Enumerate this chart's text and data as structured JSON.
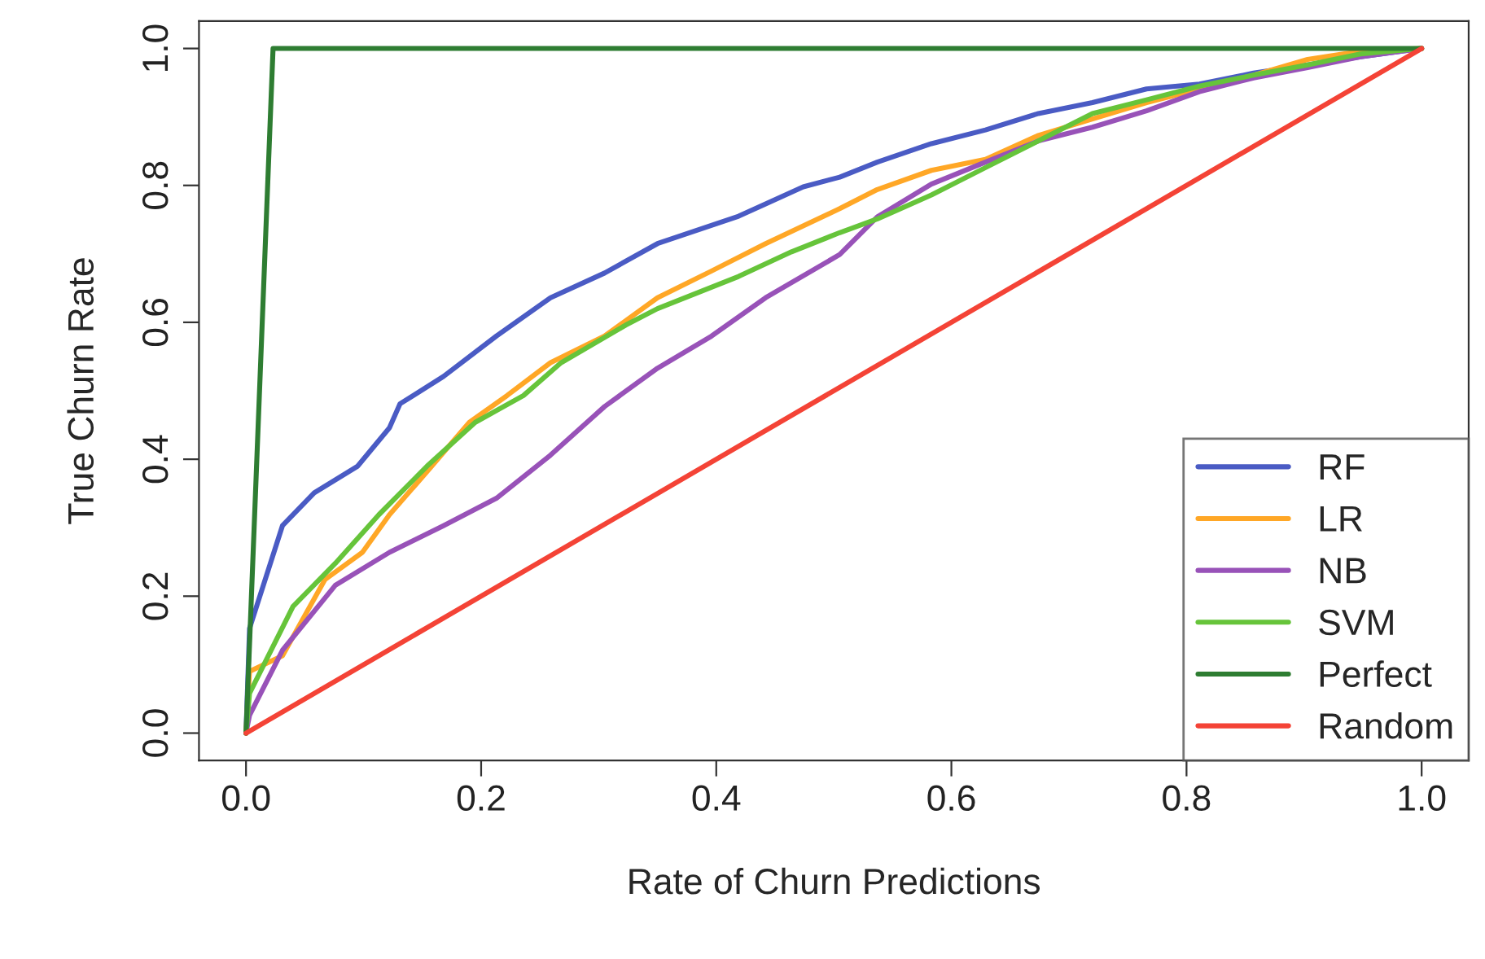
{
  "chart_data": {
    "type": "line",
    "xlabel": "Rate of Churn Predictions",
    "ylabel": "True Churn Rate",
    "xlim": [
      -0.04,
      1.04
    ],
    "ylim": [
      -0.04,
      1.04
    ],
    "xticks": [
      {
        "value": 0,
        "label": "0.0"
      },
      0.2,
      0.4,
      0.6,
      0.8,
      {
        "value": 1,
        "label": "1.0"
      }
    ],
    "yticks": [
      {
        "value": 0,
        "label": "0.0"
      },
      0.2,
      0.4,
      0.6,
      0.8,
      {
        "value": 1,
        "label": "1.0"
      }
    ],
    "grid": false,
    "legend": "bottom right",
    "marker": "none",
    "line_style": "solid",
    "series": [
      {
        "name": "RF",
        "color": "#4a5bc4",
        "x": [
          0,
          0.003,
          0.031,
          0.058,
          0.095,
          0.122,
          0.131,
          0.168,
          0.213,
          0.259,
          0.305,
          0.35,
          0.419,
          0.474,
          0.505,
          0.537,
          0.583,
          0.629,
          0.674,
          0.72,
          0.766,
          0.811,
          0.857,
          0.903,
          0.948,
          1
        ],
        "values": [
          0,
          0.153,
          0.303,
          0.351,
          0.39,
          0.446,
          0.481,
          0.521,
          0.58,
          0.636,
          0.672,
          0.715,
          0.755,
          0.798,
          0.812,
          0.834,
          0.861,
          0.881,
          0.905,
          0.921,
          0.941,
          0.948,
          0.964,
          0.976,
          0.988,
          1
        ]
      },
      {
        "name": "LR",
        "color": "#ffa726",
        "x": [
          0,
          0.003,
          0.031,
          0.067,
          0.099,
          0.122,
          0.154,
          0.19,
          0.222,
          0.259,
          0.305,
          0.35,
          0.396,
          0.442,
          0.505,
          0.537,
          0.583,
          0.629,
          0.674,
          0.72,
          0.766,
          0.811,
          0.857,
          0.903,
          0.948,
          1
        ],
        "values": [
          0,
          0.09,
          0.113,
          0.224,
          0.264,
          0.319,
          0.382,
          0.454,
          0.493,
          0.541,
          0.58,
          0.636,
          0.675,
          0.715,
          0.766,
          0.794,
          0.822,
          0.838,
          0.873,
          0.897,
          0.921,
          0.941,
          0.961,
          0.984,
          0.996,
          1
        ]
      },
      {
        "name": "NB",
        "color": "#9852b8",
        "x": [
          0,
          0.003,
          0.031,
          0.076,
          0.122,
          0.168,
          0.213,
          0.259,
          0.305,
          0.35,
          0.396,
          0.442,
          0.505,
          0.537,
          0.583,
          0.629,
          0.674,
          0.72,
          0.766,
          0.811,
          0.857,
          0.903,
          0.948,
          1
        ],
        "values": [
          0,
          0.026,
          0.121,
          0.216,
          0.264,
          0.303,
          0.343,
          0.406,
          0.477,
          0.533,
          0.58,
          0.636,
          0.699,
          0.754,
          0.802,
          0.834,
          0.865,
          0.885,
          0.909,
          0.937,
          0.957,
          0.972,
          0.988,
          1
        ]
      },
      {
        "name": "SVM",
        "color": "#66c43a",
        "x": [
          0,
          0.003,
          0.04,
          0.076,
          0.113,
          0.154,
          0.195,
          0.236,
          0.268,
          0.323,
          0.35,
          0.419,
          0.464,
          0.505,
          0.537,
          0.583,
          0.629,
          0.674,
          0.72,
          0.766,
          0.811,
          0.857,
          0.903,
          0.948,
          1
        ],
        "values": [
          0,
          0.058,
          0.185,
          0.248,
          0.319,
          0.39,
          0.454,
          0.493,
          0.541,
          0.596,
          0.62,
          0.667,
          0.703,
          0.731,
          0.751,
          0.786,
          0.826,
          0.865,
          0.905,
          0.925,
          0.945,
          0.961,
          0.976,
          0.992,
          1
        ]
      },
      {
        "name": "Perfect",
        "color": "#2e7d32",
        "x": [
          0,
          0.023,
          1
        ],
        "values": [
          0,
          1,
          1
        ]
      },
      {
        "name": "Random",
        "color": "#f44336",
        "x": [
          0,
          1
        ],
        "values": [
          0,
          1
        ]
      }
    ]
  }
}
